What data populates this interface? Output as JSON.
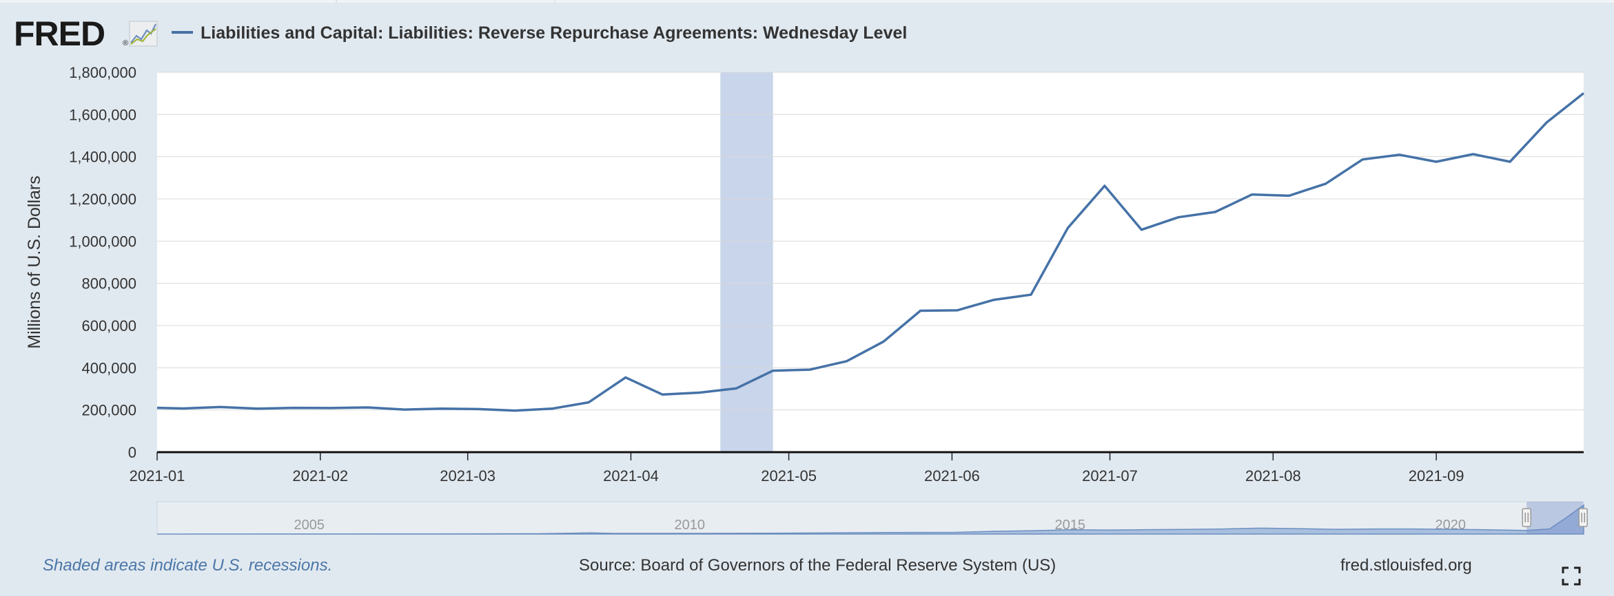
{
  "logo": {
    "text": "FRED",
    "registered": "®"
  },
  "legend": {
    "series_label": "Liabilities and Capital: Liabilities: Reverse Repurchase Agreements: Wednesday Level",
    "color": "#4572a7"
  },
  "colors": {
    "background": "#e1e9f0",
    "plot": "#ffffff",
    "line": "#4572a7",
    "recession": "#c9d5ea",
    "navigator_fill": "#a9bfdf"
  },
  "footer": {
    "note": "Shaded areas indicate U.S. recessions.",
    "source": "Source: Board of Governors of the Federal Reserve System (US)",
    "site": "fred.stlouisfed.org"
  },
  "icons": {
    "fullscreen": "expand-corners-icon"
  },
  "chart_data": {
    "type": "line",
    "title": "",
    "xlabel": "",
    "ylabel": "Millions of U.S. Dollars",
    "xlim": [
      "2021-01-01",
      "2021-09-29"
    ],
    "ylim": [
      0,
      1800000
    ],
    "yticks": [
      0,
      200000,
      400000,
      600000,
      800000,
      1000000,
      1200000,
      1400000,
      1600000,
      1800000
    ],
    "ytick_labels": [
      "0",
      "200,000",
      "400,000",
      "600,000",
      "800,000",
      "1,000,000",
      "1,200,000",
      "1,400,000",
      "1,600,000",
      "1,800,000"
    ],
    "xticks": [
      "2021-01-01",
      "2021-02-01",
      "2021-03-01",
      "2021-04-01",
      "2021-05-01",
      "2021-06-01",
      "2021-07-01",
      "2021-08-01",
      "2021-09-01"
    ],
    "xtick_labels": [
      "2021-01",
      "2021-02",
      "2021-03",
      "2021-04",
      "2021-05",
      "2021-06",
      "2021-07",
      "2021-08",
      "2021-09"
    ],
    "grid": true,
    "legend_position": "top-left",
    "recession_shading": [
      {
        "start": "2021-04-18",
        "end": "2021-04-28"
      }
    ],
    "series": [
      {
        "name": "Liabilities and Capital: Liabilities: Reverse Repurchase Agreements: Wednesday Level",
        "x": [
          "2021-01-01",
          "2021-01-06",
          "2021-01-13",
          "2021-01-20",
          "2021-01-27",
          "2021-02-03",
          "2021-02-10",
          "2021-02-17",
          "2021-02-24",
          "2021-03-03",
          "2021-03-10",
          "2021-03-17",
          "2021-03-24",
          "2021-03-31",
          "2021-04-07",
          "2021-04-14",
          "2021-04-21",
          "2021-04-28",
          "2021-05-05",
          "2021-05-12",
          "2021-05-19",
          "2021-05-26",
          "2021-06-02",
          "2021-06-09",
          "2021-06-16",
          "2021-06-23",
          "2021-06-30",
          "2021-07-07",
          "2021-07-14",
          "2021-07-21",
          "2021-07-28",
          "2021-08-04",
          "2021-08-11",
          "2021-08-18",
          "2021-08-25",
          "2021-09-01",
          "2021-09-08",
          "2021-09-15",
          "2021-09-22",
          "2021-09-29"
        ],
        "values": [
          210000,
          207000,
          214000,
          206000,
          210000,
          209000,
          212000,
          202000,
          206000,
          204000,
          197000,
          206000,
          236000,
          354000,
          273000,
          282000,
          302000,
          386000,
          391000,
          431000,
          524000,
          670000,
          672000,
          722000,
          746000,
          1062000,
          1262000,
          1054000,
          1113000,
          1138000,
          1221000,
          1215000,
          1272000,
          1387000,
          1409000,
          1376000,
          1412000,
          1376000,
          1563000,
          1701000
        ]
      }
    ],
    "navigator": {
      "tick_labels": [
        "2005",
        "2010",
        "2015",
        "2020"
      ],
      "tick_years": [
        2005,
        2010,
        2015,
        2020
      ],
      "range": [
        2003,
        2021.75
      ],
      "selected": [
        "2021-01-01",
        "2021-09-29"
      ],
      "overview_x": [
        2003.0,
        2006.0,
        2008.0,
        2008.7,
        2009.0,
        2010.0,
        2011.5,
        2012.5,
        2013.5,
        2014.0,
        2014.5,
        2015.0,
        2015.5,
        2016.0,
        2016.5,
        2017.0,
        2017.5,
        2018.0,
        2018.5,
        2019.0,
        2019.5,
        2020.0,
        2020.5,
        2021.0,
        2021.3,
        2021.5,
        2021.75
      ],
      "overview_values": [
        0,
        10000,
        20000,
        70000,
        40000,
        40000,
        60000,
        90000,
        100000,
        160000,
        200000,
        250000,
        240000,
        260000,
        270000,
        300000,
        350000,
        320000,
        280000,
        300000,
        300000,
        280000,
        250000,
        210000,
        300000,
        900000,
        1700000
      ]
    }
  }
}
